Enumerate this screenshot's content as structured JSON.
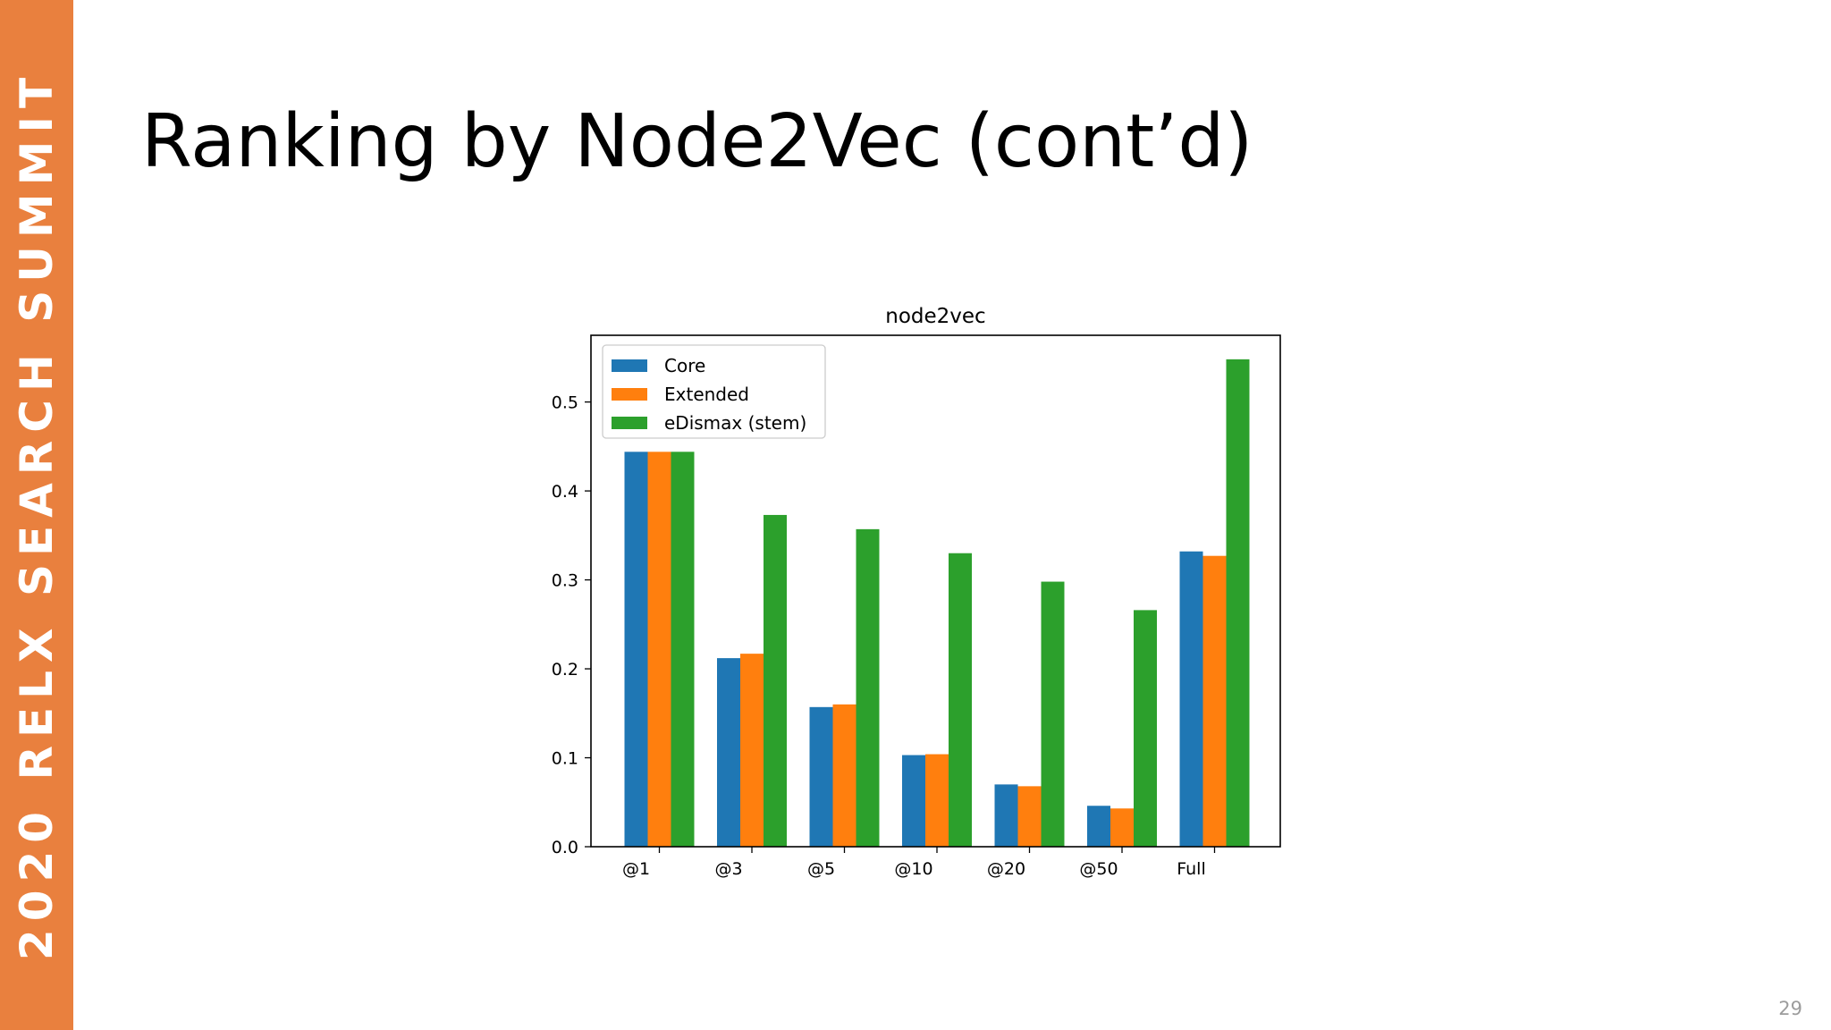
{
  "sidebar": {
    "text": "2020 RELX SEARCH SUMMIT"
  },
  "slide": {
    "title": "Ranking by Node2Vec (cont’d)",
    "page_number": "29"
  },
  "colors": {
    "sidebar": "#e9803e",
    "core": "#1f77b4",
    "extended": "#ff7f0e",
    "edismax": "#2ca02c"
  },
  "chart_data": {
    "type": "bar",
    "title": "node2vec",
    "xlabel": "",
    "ylabel": "",
    "categories": [
      "@1",
      "@3",
      "@5",
      "@10",
      "@20",
      "@50",
      "Full"
    ],
    "series": [
      {
        "name": "Core",
        "color": "#1f77b4",
        "values": [
          0.444,
          0.212,
          0.157,
          0.103,
          0.07,
          0.046,
          0.332
        ]
      },
      {
        "name": "Extended",
        "color": "#ff7f0e",
        "values": [
          0.444,
          0.217,
          0.16,
          0.104,
          0.068,
          0.043,
          0.327
        ]
      },
      {
        "name": "eDismax (stem)",
        "color": "#2ca02c",
        "values": [
          0.444,
          0.373,
          0.357,
          0.33,
          0.298,
          0.266,
          0.548
        ]
      }
    ],
    "yticks": [
      "0.0",
      "0.1",
      "0.2",
      "0.3",
      "0.4",
      "0.5"
    ],
    "ylim": [
      0,
      0.575
    ],
    "legend": "top-left",
    "grid": false
  }
}
